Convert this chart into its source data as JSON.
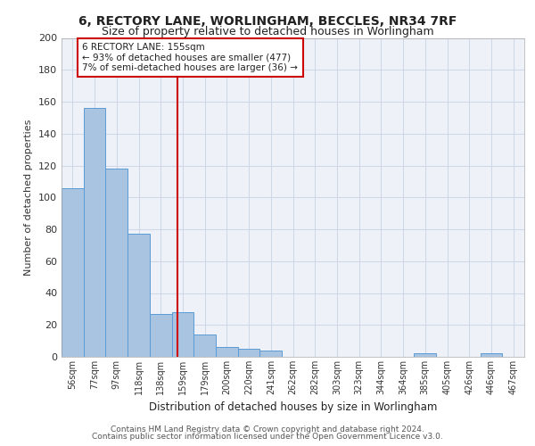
{
  "title1": "6, RECTORY LANE, WORLINGHAM, BECCLES, NR34 7RF",
  "title2": "Size of property relative to detached houses in Worlingham",
  "xlabel": "Distribution of detached houses by size in Worlingham",
  "ylabel": "Number of detached properties",
  "bins": [
    "56sqm",
    "77sqm",
    "97sqm",
    "118sqm",
    "138sqm",
    "159sqm",
    "179sqm",
    "200sqm",
    "220sqm",
    "241sqm",
    "262sqm",
    "282sqm",
    "303sqm",
    "323sqm",
    "344sqm",
    "364sqm",
    "385sqm",
    "405sqm",
    "426sqm",
    "446sqm",
    "467sqm"
  ],
  "values": [
    106,
    156,
    118,
    77,
    27,
    28,
    14,
    6,
    5,
    4,
    0,
    0,
    0,
    0,
    0,
    0,
    2,
    0,
    0,
    2,
    0
  ],
  "bar_color": "#a8c4e0",
  "bar_edge_color": "#5b9bd5",
  "grid_color": "#d0d8e8",
  "background_color": "#eef2f8",
  "red_line_x": 4.77,
  "annotation_text_line1": "6 RECTORY LANE: 155sqm",
  "annotation_text_line2": "← 93% of detached houses are smaller (477)",
  "annotation_text_line3": "7% of semi-detached houses are larger (36) →",
  "annotation_box_color": "#ffffff",
  "annotation_box_edge": "#cc0000",
  "red_line_color": "#cc0000",
  "ylim": [
    0,
    200
  ],
  "yticks": [
    0,
    20,
    40,
    60,
    80,
    100,
    120,
    140,
    160,
    180,
    200
  ],
  "footer1": "Contains HM Land Registry data © Crown copyright and database right 2024.",
  "footer2": "Contains public sector information licensed under the Open Government Licence v3.0."
}
